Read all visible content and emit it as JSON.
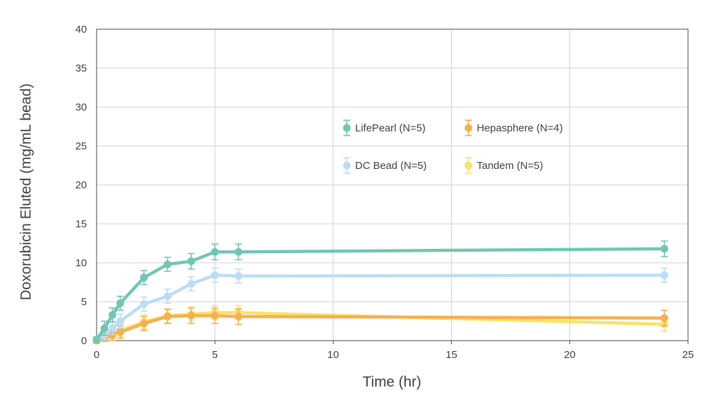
{
  "chart_data": {
    "type": "line",
    "title": "",
    "xlabel": "Time (hr)",
    "ylabel": "Doxorubicin Eluted (mg/mL bead)",
    "xlim": [
      0,
      25
    ],
    "ylim": [
      0,
      40
    ],
    "xticks": [
      0,
      5,
      10,
      15,
      20,
      25
    ],
    "yticks": [
      0,
      5,
      10,
      15,
      20,
      25,
      30,
      35,
      40
    ],
    "grid": true,
    "legend_position": "center",
    "series": [
      {
        "name": "LifePearl (N=5)",
        "color": "#70c6b2",
        "x": [
          0,
          0.33,
          0.67,
          1,
          2,
          3,
          4,
          5,
          6,
          24
        ],
        "y": [
          0.1,
          1.6,
          3.3,
          4.8,
          8.1,
          9.8,
          10.2,
          11.4,
          11.4,
          11.8
        ],
        "err": [
          0.4,
          0.9,
          0.9,
          0.9,
          0.9,
          0.9,
          1.0,
          1.0,
          1.0,
          1.0
        ]
      },
      {
        "name": "Hepasphere (N=4)",
        "color": "#f5b04f",
        "x": [
          0,
          0.33,
          0.67,
          1,
          2,
          3,
          4,
          5,
          6,
          24
        ],
        "y": [
          0.0,
          0.3,
          0.7,
          1.1,
          2.2,
          3.1,
          3.2,
          3.2,
          3.1,
          2.9
        ],
        "err": [
          0.2,
          0.4,
          0.7,
          0.8,
          0.9,
          0.9,
          1.0,
          1.0,
          1.0,
          1.0
        ]
      },
      {
        "name": "DC Bead (N=5)",
        "color": "#bcdcf5",
        "x": [
          0,
          0.33,
          0.67,
          1,
          2,
          3,
          4,
          5,
          6,
          24
        ],
        "y": [
          0.1,
          0.7,
          1.6,
          2.5,
          4.7,
          5.7,
          7.3,
          8.4,
          8.3,
          8.4
        ],
        "err": [
          0.3,
          0.6,
          0.8,
          0.9,
          0.9,
          0.9,
          0.9,
          0.9,
          0.9,
          0.9
        ]
      },
      {
        "name": "Tandem (N=5)",
        "color": "#f7e36a",
        "x": [
          0,
          0.33,
          0.67,
          1,
          2,
          3,
          4,
          5,
          6,
          24
        ],
        "y": [
          0.0,
          0.4,
          0.9,
          1.3,
          2.4,
          3.2,
          3.4,
          3.6,
          3.6,
          2.1
        ],
        "err": [
          0.2,
          0.4,
          0.7,
          0.8,
          0.9,
          0.9,
          0.9,
          0.9,
          0.9,
          0.9
        ]
      }
    ]
  }
}
